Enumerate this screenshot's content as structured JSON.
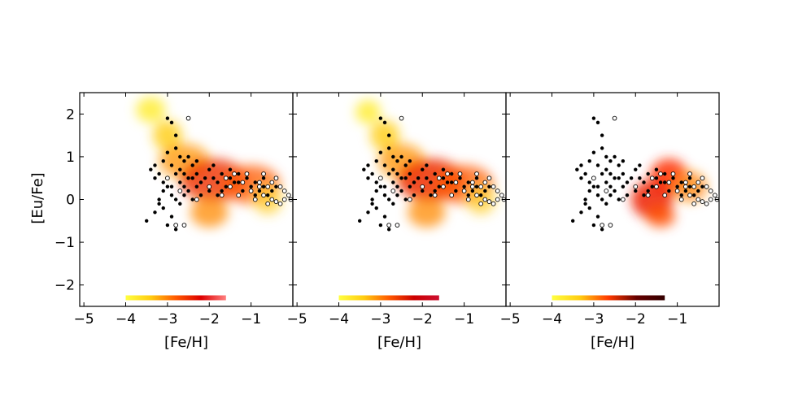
{
  "chart_data": [
    {
      "type": "scatter",
      "panel": 1,
      "xlabel": "[Fe/H]",
      "ylabel": "[Eu/Fe]",
      "xlim": [
        -5.1,
        0.0
      ],
      "ylim": [
        -2.5,
        2.5
      ],
      "xticks": [
        -5,
        -4,
        -3,
        -2,
        -1
      ],
      "xtick_labels": [
        "−5",
        "−4",
        "−3",
        "−2",
        "−1"
      ],
      "yticks": [
        -2,
        -1,
        0,
        1,
        2
      ],
      "ytick_labels": [
        "−2",
        "−1",
        "0",
        "1",
        "2"
      ],
      "density_blobs": [
        {
          "x": -3.4,
          "y": 2.1,
          "rx": 0.35,
          "ry": 0.3,
          "color": "#ffee44",
          "opacity": 0.9
        },
        {
          "x": -3.0,
          "y": 1.5,
          "rx": 0.35,
          "ry": 0.35,
          "color": "#ffd020",
          "opacity": 0.85
        },
        {
          "x": -2.6,
          "y": 0.9,
          "rx": 0.6,
          "ry": 0.4,
          "color": "#ff9a10",
          "opacity": 0.8
        },
        {
          "x": -1.9,
          "y": 0.45,
          "rx": 0.8,
          "ry": 0.5,
          "color": "#ee3000",
          "opacity": 0.8
        },
        {
          "x": -1.0,
          "y": 0.35,
          "rx": 0.7,
          "ry": 0.45,
          "color": "#ff5a00",
          "opacity": 0.75
        },
        {
          "x": -2.0,
          "y": -0.3,
          "rx": 0.45,
          "ry": 0.35,
          "color": "#ff8a00",
          "opacity": 0.75
        },
        {
          "x": -0.6,
          "y": 0.0,
          "rx": 0.35,
          "ry": 0.35,
          "color": "#ffd030",
          "opacity": 0.75
        }
      ],
      "colorbar_range": [
        -4.0,
        -1.6
      ],
      "colorbar_y": -2.3,
      "colorbar_colors": [
        "#ffff40",
        "#ffcc10",
        "#ff5a00",
        "#dd0000",
        "#ff8080"
      ]
    },
    {
      "type": "scatter",
      "panel": 2,
      "xlabel": "[Fe/H]",
      "xlim": [
        -5.1,
        0.0
      ],
      "ylim": [
        -2.5,
        2.5
      ],
      "xticks": [
        -5,
        -4,
        -3,
        -2,
        -1
      ],
      "xtick_labels": [
        "−5",
        "−4",
        "−3",
        "−2",
        "−1"
      ],
      "density_blobs": [
        {
          "x": -3.3,
          "y": 2.05,
          "rx": 0.3,
          "ry": 0.28,
          "color": "#ffee44",
          "opacity": 0.9
        },
        {
          "x": -2.9,
          "y": 1.5,
          "rx": 0.35,
          "ry": 0.35,
          "color": "#ffd020",
          "opacity": 0.85
        },
        {
          "x": -2.5,
          "y": 0.9,
          "rx": 0.55,
          "ry": 0.4,
          "color": "#ff9a10",
          "opacity": 0.8
        },
        {
          "x": -1.8,
          "y": 0.45,
          "rx": 0.8,
          "ry": 0.5,
          "color": "#ee3000",
          "opacity": 0.85
        },
        {
          "x": -1.0,
          "y": 0.35,
          "rx": 0.7,
          "ry": 0.45,
          "color": "#ff5a00",
          "opacity": 0.75
        },
        {
          "x": -1.9,
          "y": -0.3,
          "rx": 0.45,
          "ry": 0.35,
          "color": "#ff8a00",
          "opacity": 0.75
        },
        {
          "x": -0.6,
          "y": 0.0,
          "rx": 0.35,
          "ry": 0.35,
          "color": "#ffd030",
          "opacity": 0.75
        }
      ],
      "colorbar_range": [
        -4.0,
        -1.6
      ],
      "colorbar_y": -2.3,
      "colorbar_colors": [
        "#ffff40",
        "#ffcc10",
        "#ff5a00",
        "#cc0000",
        "#cc1030"
      ]
    },
    {
      "type": "scatter",
      "panel": 3,
      "xlabel": "[Fe/H]",
      "xlim": [
        -5.1,
        0.0
      ],
      "ylim": [
        -2.5,
        2.5
      ],
      "xticks": [
        -5,
        -4,
        -3,
        -2,
        -1
      ],
      "xtick_labels": [
        "−5",
        "−4",
        "−3",
        "−2",
        "−1"
      ],
      "density_blobs": [
        {
          "x": -1.2,
          "y": 0.55,
          "rx": 0.45,
          "ry": 0.4,
          "color": "#ff3000",
          "opacity": 0.85
        },
        {
          "x": -1.6,
          "y": 0.0,
          "rx": 0.5,
          "ry": 0.45,
          "color": "#ee2000",
          "opacity": 0.85
        },
        {
          "x": -0.7,
          "y": 0.3,
          "rx": 0.4,
          "ry": 0.35,
          "color": "#ff8a10",
          "opacity": 0.8
        },
        {
          "x": -1.4,
          "y": -0.4,
          "rx": 0.35,
          "ry": 0.25,
          "color": "#ff5000",
          "opacity": 0.8
        }
      ],
      "colorbar_range": [
        -4.0,
        -1.3
      ],
      "colorbar_y": -2.3,
      "colorbar_colors": [
        "#ffff40",
        "#ffcc10",
        "#ff3a00",
        "#660000",
        "#330000"
      ]
    }
  ],
  "stars_filled": [
    [
      -3.5,
      -0.5
    ],
    [
      -3.3,
      -0.3
    ],
    [
      -3.2,
      -0.1
    ],
    [
      -3.1,
      0.2
    ],
    [
      -3.0,
      0.5
    ],
    [
      -2.9,
      0.8
    ],
    [
      -2.8,
      1.2
    ],
    [
      -2.7,
      1.0
    ],
    [
      -3.2,
      0.6
    ],
    [
      -3.1,
      0.9
    ],
    [
      -3.0,
      1.9
    ],
    [
      -2.9,
      1.8
    ],
    [
      -3.4,
      0.7
    ],
    [
      -3.3,
      0.5
    ],
    [
      -3.2,
      0.0
    ],
    [
      -3.1,
      -0.2
    ],
    [
      -3.0,
      0.3
    ],
    [
      -2.9,
      0.1
    ],
    [
      -2.8,
      0.6
    ],
    [
      -2.7,
      0.4
    ],
    [
      -2.6,
      0.3
    ],
    [
      -2.5,
      0.5
    ],
    [
      -2.4,
      0.8
    ],
    [
      -2.3,
      0.6
    ],
    [
      -2.2,
      0.4
    ],
    [
      -2.1,
      0.5
    ],
    [
      -2.0,
      0.7
    ],
    [
      -1.9,
      0.5
    ],
    [
      -1.8,
      0.4
    ],
    [
      -1.7,
      0.6
    ],
    [
      -1.6,
      0.3
    ],
    [
      -1.5,
      0.5
    ],
    [
      -1.4,
      0.4
    ],
    [
      -1.3,
      0.6
    ],
    [
      -1.2,
      0.2
    ],
    [
      -1.1,
      0.5
    ],
    [
      -1.0,
      0.3
    ],
    [
      -0.9,
      0.4
    ],
    [
      -0.8,
      0.2
    ],
    [
      -0.7,
      0.3
    ],
    [
      -0.6,
      0.1
    ],
    [
      -0.5,
      0.2
    ],
    [
      -0.4,
      0.3
    ],
    [
      -2.8,
      0.0
    ],
    [
      -2.7,
      -0.1
    ],
    [
      -2.6,
      0.1
    ],
    [
      -2.5,
      0.2
    ],
    [
      -2.4,
      0.0
    ],
    [
      -2.9,
      -0.4
    ],
    [
      -3.0,
      -0.6
    ],
    [
      -2.8,
      -0.7
    ],
    [
      -3.1,
      0.4
    ],
    [
      -2.9,
      0.3
    ],
    [
      -2.7,
      0.7
    ],
    [
      -2.6,
      0.9
    ],
    [
      -2.5,
      1.0
    ],
    [
      -2.3,
      0.3
    ],
    [
      -2.2,
      0.1
    ],
    [
      -2.0,
      0.2
    ],
    [
      -1.8,
      0.1
    ],
    [
      -3.3,
      0.8
    ],
    [
      -3.0,
      1.1
    ],
    [
      -2.8,
      1.5
    ],
    [
      -2.6,
      0.6
    ],
    [
      -2.4,
      0.5
    ],
    [
      -2.3,
      0.9
    ],
    [
      -1.9,
      0.8
    ],
    [
      -1.7,
      0.2
    ],
    [
      -1.5,
      0.7
    ],
    [
      -1.3,
      0.4
    ],
    [
      -0.9,
      0.1
    ],
    [
      -0.7,
      0.5
    ]
  ],
  "stars_open": [
    [
      -2.5,
      1.9
    ],
    [
      -2.6,
      -0.6
    ],
    [
      -2.8,
      -0.6
    ],
    [
      -3.0,
      0.5
    ],
    [
      -2.7,
      0.2
    ],
    [
      -2.3,
      0.0
    ],
    [
      -2.0,
      0.3
    ],
    [
      -1.7,
      0.1
    ],
    [
      -1.5,
      0.3
    ],
    [
      -1.3,
      0.1
    ],
    [
      -1.1,
      0.6
    ],
    [
      -1.0,
      0.2
    ],
    [
      -0.9,
      0.0
    ],
    [
      -0.8,
      0.4
    ],
    [
      -0.7,
      0.1
    ],
    [
      -0.6,
      0.3
    ],
    [
      -0.5,
      0.0
    ],
    [
      -0.4,
      0.5
    ],
    [
      -0.3,
      -0.1
    ],
    [
      -0.2,
      0.2
    ],
    [
      -0.1,
      0.1
    ],
    [
      -0.05,
      0.0
    ],
    [
      -0.6,
      -0.1
    ],
    [
      -0.8,
      0.3
    ],
    [
      -1.2,
      0.4
    ],
    [
      -1.4,
      0.6
    ],
    [
      -1.6,
      0.5
    ],
    [
      -0.5,
      0.4
    ],
    [
      -0.7,
      0.6
    ],
    [
      -0.3,
      0.3
    ],
    [
      -0.2,
      0.0
    ],
    [
      -0.4,
      -0.05
    ]
  ]
}
